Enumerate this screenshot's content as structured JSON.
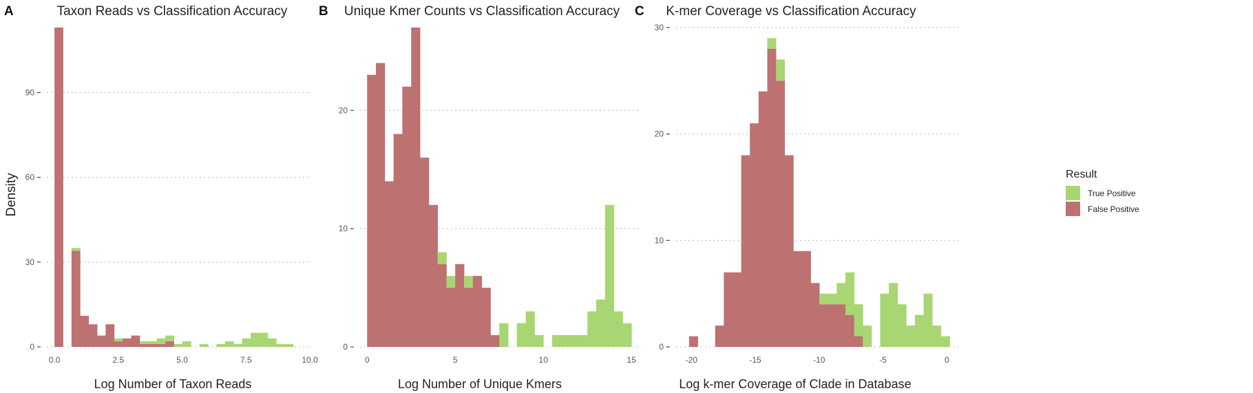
{
  "figure": {
    "ylabel": "Density",
    "legend": {
      "title": "Result",
      "items": [
        {
          "label": "True Positive",
          "color": "#a8d672"
        },
        {
          "label": "False Positive",
          "color": "#bd7170"
        }
      ]
    }
  },
  "chart_data": [
    {
      "type": "bar",
      "panel": "A",
      "title": "Taxon Reads vs Classification Accuracy",
      "xlabel": "Log Number of Taxon Reads",
      "ylabel": "Density",
      "stacked": true,
      "xlim": [
        -0.3,
        10.0
      ],
      "ylim": [
        0,
        113
      ],
      "xticks": [
        0.0,
        2.5,
        5.0,
        7.5,
        10.0
      ],
      "xtick_labels": [
        "0.0",
        "2.5",
        "5.0",
        "7.5",
        "10.0"
      ],
      "yticks": [
        0,
        30,
        60,
        90
      ],
      "bin_width": 0.334,
      "x": [
        0.0,
        0.334,
        0.668,
        1.002,
        1.336,
        1.67,
        2.004,
        2.338,
        2.672,
        3.006,
        3.34,
        3.674,
        4.008,
        4.342,
        4.676,
        5.01,
        5.344,
        5.678,
        6.012,
        6.346,
        6.68,
        7.014,
        7.348,
        7.682,
        8.016,
        8.35,
        8.684,
        9.018,
        9.352
      ],
      "series": [
        {
          "name": "False Positive",
          "color": "#bd7170",
          "values": [
            113,
            0,
            34,
            11,
            8,
            4,
            8,
            2,
            3,
            4,
            1,
            1,
            1,
            2,
            0,
            0,
            0,
            0,
            0,
            0,
            0,
            0,
            0,
            0,
            0,
            0,
            0,
            0,
            0
          ]
        },
        {
          "name": "True Positive",
          "color": "#a8d672",
          "values": [
            0,
            0,
            1,
            0,
            0,
            0,
            0,
            1,
            0,
            0,
            1,
            1,
            2,
            2,
            1,
            2,
            0,
            1,
            0,
            1,
            2,
            1,
            3,
            5,
            5,
            3,
            1,
            1,
            0
          ]
        }
      ]
    },
    {
      "type": "bar",
      "panel": "B",
      "title": "Unique Kmer Counts vs Classification Accuracy",
      "xlabel": "Log Number of Unique Kmers",
      "ylabel": "",
      "stacked": true,
      "xlim": [
        -0.4,
        15.5
      ],
      "ylim": [
        0,
        27
      ],
      "xticks": [
        0,
        5,
        10,
        15
      ],
      "xtick_labels": [
        "0",
        "5",
        "10",
        "15"
      ],
      "yticks": [
        0,
        10,
        20
      ],
      "bin_width": 0.5,
      "x": [
        0.0,
        0.5,
        1.0,
        1.5,
        2.0,
        2.5,
        3.0,
        3.5,
        4.0,
        4.5,
        5.0,
        5.5,
        6.0,
        6.5,
        7.0,
        7.5,
        8.0,
        8.5,
        9.0,
        9.5,
        10.0,
        10.5,
        11.0,
        11.5,
        12.0,
        12.5,
        13.0,
        13.5,
        14.0,
        14.5
      ],
      "series": [
        {
          "name": "False Positive",
          "color": "#bd7170",
          "values": [
            23,
            24,
            14,
            18,
            22,
            27,
            16,
            12,
            7,
            5,
            7,
            5,
            6,
            5,
            1,
            0,
            0,
            0,
            0,
            0,
            0,
            0,
            0,
            0,
            0,
            0,
            0,
            0,
            0,
            0
          ]
        },
        {
          "name": "True Positive",
          "color": "#a8d672",
          "values": [
            0,
            0,
            0,
            0,
            0,
            0,
            0,
            0,
            1,
            1,
            0,
            1,
            0,
            0,
            0,
            2,
            0,
            2,
            3,
            1,
            0,
            1,
            1,
            1,
            1,
            3,
            4,
            12,
            3,
            2
          ]
        }
      ]
    },
    {
      "type": "bar",
      "panel": "C",
      "title": "K-mer Coverage vs Classification Accuracy",
      "xlabel": "Log k-mer Coverage of Clade in Database",
      "ylabel": "",
      "stacked": true,
      "xlim": [
        -21.2,
        0.9
      ],
      "ylim": [
        0,
        30
      ],
      "xticks": [
        -20,
        -15,
        -10,
        -5,
        0
      ],
      "xtick_labels": [
        "-20",
        "-15",
        "-10",
        "-5",
        "0"
      ],
      "yticks": [
        0,
        10,
        20,
        30
      ],
      "bin_width": 0.68,
      "x": [
        -20.18,
        -19.5,
        -18.82,
        -18.14,
        -17.46,
        -16.78,
        -16.1,
        -15.42,
        -14.74,
        -14.06,
        -13.38,
        -12.7,
        -12.02,
        -11.34,
        -10.66,
        -9.98,
        -9.3,
        -8.62,
        -7.94,
        -7.26,
        -6.58,
        -5.9,
        -5.22,
        -4.54,
        -3.86,
        -3.18,
        -2.5,
        -1.82,
        -1.14,
        -0.46
      ],
      "series": [
        {
          "name": "False Positive",
          "color": "#bd7170",
          "values": [
            1,
            0,
            0,
            2,
            7,
            7,
            18,
            21,
            24,
            28,
            25,
            18,
            9,
            9,
            6,
            4,
            4,
            4,
            3,
            1,
            0,
            0,
            0,
            0,
            0,
            0,
            0,
            0,
            0,
            0
          ]
        },
        {
          "name": "True Positive",
          "color": "#a8d672",
          "values": [
            0,
            0,
            0,
            0,
            0,
            0,
            0,
            0,
            0,
            1,
            2,
            0,
            0,
            0,
            0,
            1,
            1,
            2,
            4,
            3,
            2,
            0,
            5,
            6,
            4,
            2,
            3,
            5,
            2,
            1
          ]
        }
      ]
    }
  ]
}
